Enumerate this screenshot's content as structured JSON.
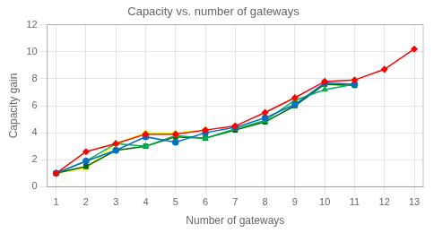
{
  "chart_data": {
    "type": "line",
    "title": "Capacity vs. number of gateways",
    "xlabel": "Number of gateways",
    "ylabel": "Capacity gain",
    "xlim": [
      0.7,
      13.3
    ],
    "ylim": [
      0,
      12
    ],
    "xticks": [
      1,
      2,
      3,
      4,
      5,
      6,
      7,
      8,
      9,
      10,
      11,
      12,
      13
    ],
    "yticks": [
      0,
      2,
      4,
      6,
      8,
      10,
      12
    ],
    "grid": true,
    "series": [
      {
        "color": "#ff0000",
        "marker": "diamond",
        "x": [
          1,
          2,
          3,
          4,
          5,
          6,
          7,
          8,
          9,
          10,
          11,
          12,
          13
        ],
        "values": [
          1.0,
          2.6,
          3.2,
          3.9,
          3.9,
          4.2,
          4.5,
          5.5,
          6.6,
          7.8,
          7.9,
          8.7,
          10.2
        ]
      },
      {
        "color": "#0070c0",
        "marker": "circle",
        "x": [
          1,
          2,
          3,
          4,
          5,
          6,
          7,
          8,
          9,
          10,
          11
        ],
        "values": [
          1.0,
          1.9,
          2.7,
          3.7,
          3.3,
          4.0,
          4.4,
          5.1,
          6.1,
          7.7,
          7.6
        ]
      },
      {
        "color": "#00b050",
        "marker": "triangle",
        "x": [
          1,
          2,
          3,
          4,
          5,
          6,
          7,
          8,
          9,
          10,
          11
        ],
        "values": [
          1.0,
          1.9,
          3.2,
          3.0,
          3.8,
          3.6,
          4.3,
          4.9,
          6.4,
          7.2,
          7.6
        ]
      },
      {
        "color": "#006400",
        "marker": "square",
        "x": [
          1,
          2,
          3,
          4,
          5,
          6,
          7,
          8,
          9,
          10,
          11
        ],
        "values": [
          1.0,
          1.5,
          2.7,
          3.0,
          3.7,
          3.6,
          4.2,
          4.8,
          6.0,
          7.6,
          7.5
        ]
      },
      {
        "color": "#ffff00",
        "marker": "diamond",
        "x": [
          1,
          2,
          3,
          4,
          5,
          6
        ],
        "values": [
          1.0,
          1.4,
          3.2,
          4.0,
          4.0,
          4.2
        ]
      }
    ]
  }
}
